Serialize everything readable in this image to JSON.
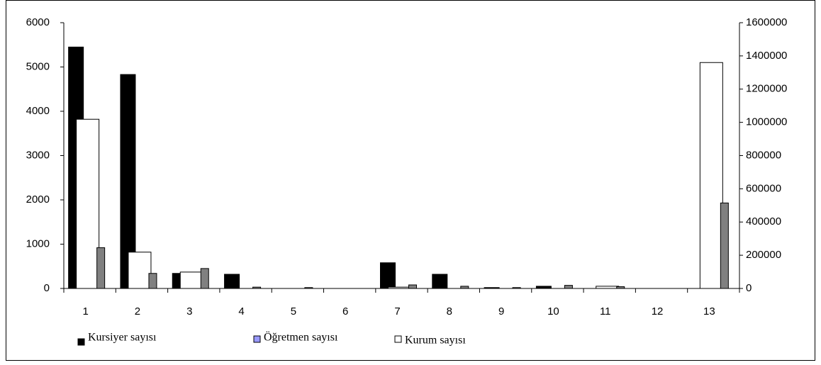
{
  "chart_data": {
    "type": "bar",
    "categories": [
      "1",
      "2",
      "3",
      "4",
      "5",
      "6",
      "7",
      "8",
      "9",
      "10",
      "11",
      "12",
      "13"
    ],
    "series": [
      {
        "name": "Kursiyer sayısı",
        "color": "#000000",
        "legend_color": "#000000",
        "values": [
          5450,
          4830,
          340,
          320,
          0,
          0,
          580,
          320,
          20,
          50,
          0,
          0,
          0
        ]
      },
      {
        "name": "Kurum sayısı",
        "color": "#ffffff",
        "legend_color": "#ffffff",
        "values": [
          3820,
          820,
          370,
          0,
          0,
          0,
          30,
          0,
          0,
          0,
          50,
          0,
          5100
        ]
      },
      {
        "name": "Öğretmen sayısı",
        "color": "#808080",
        "legend_color": "#9999ff",
        "values": [
          920,
          340,
          450,
          30,
          20,
          0,
          80,
          50,
          20,
          70,
          40,
          0,
          1930
        ]
      }
    ],
    "legend_order": [
      0,
      2,
      1
    ],
    "ylim": [
      0,
      6000
    ],
    "yticks": [
      0,
      1000,
      2000,
      3000,
      4000,
      5000,
      6000
    ],
    "y2lim": [
      0,
      1600000
    ],
    "y2ticks": [
      0,
      200000,
      400000,
      600000,
      800000,
      1000000,
      1200000,
      1400000,
      1600000
    ],
    "grid": false
  }
}
